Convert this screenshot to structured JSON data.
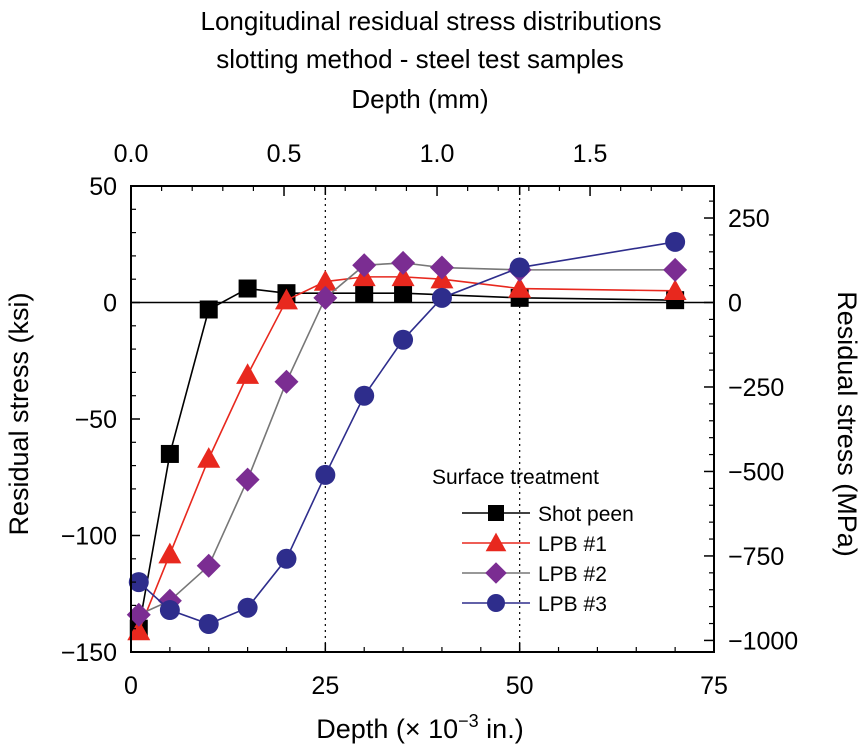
{
  "chart_data": {
    "type": "line",
    "title": "Longitudinal residual stress distributions",
    "subtitle": "slotting method - steel test samples",
    "xlabel": "Depth (× 10",
    "xlabel_sup": "−3",
    "xlabel_tail": " in.)",
    "ylabel": "Residual stress (ksi)",
    "top_xlabel": "Depth (mm)",
    "right_ylabel": "Residual stress (MPa)",
    "xlim": [
      0,
      75
    ],
    "ylim": [
      -150,
      50
    ],
    "x_ticks": [
      "0",
      "25",
      "50",
      "75"
    ],
    "y_ticks": [
      "50",
      "0",
      "−50",
      "−100",
      "−150"
    ],
    "top_ticks": [
      "0.0",
      "0.5",
      "1.0",
      "1.5"
    ],
    "right_ticks": [
      "250",
      "0",
      "−250",
      "−500",
      "−750",
      "−1000"
    ],
    "legend_title": "Surface treatment",
    "series": [
      {
        "name": "Shot peen",
        "marker": "square",
        "color": "#000000",
        "markerColor": "#000000",
        "dash": "0",
        "x": [
          1,
          5,
          10,
          15,
          20,
          30,
          35,
          50,
          70
        ],
        "y": [
          -140,
          -65,
          -3,
          6,
          4,
          4,
          4,
          2,
          1
        ]
      },
      {
        "name": "LPB #1",
        "marker": "triangle",
        "color": "#e8281e",
        "markerColor": "#e8281e",
        "dash": "0",
        "x": [
          1,
          5,
          10,
          15,
          20,
          25,
          30,
          35,
          40,
          50,
          70
        ],
        "y": [
          -141,
          -108,
          -67,
          -31,
          1,
          9,
          11,
          11,
          10,
          6,
          5
        ]
      },
      {
        "name": "LPB #2",
        "marker": "diamond",
        "color": "#777777",
        "markerColor": "#7b2d92",
        "dash": "0",
        "x": [
          1,
          5,
          10,
          15,
          20,
          25,
          30,
          35,
          40,
          50,
          70
        ],
        "y": [
          -134,
          -128,
          -113,
          -76,
          -34,
          2,
          16,
          17,
          15,
          14,
          14
        ]
      },
      {
        "name": "LPB #3",
        "marker": "circle",
        "color": "#2e2d8c",
        "markerColor": "#2e2d8c",
        "dash": "0",
        "x": [
          1,
          5,
          10,
          15,
          20,
          25,
          30,
          35,
          40,
          50,
          70
        ],
        "y": [
          -120,
          -132,
          -138,
          -131,
          -110,
          -74,
          -40,
          -16,
          2,
          15,
          26
        ]
      }
    ],
    "reference_lines_x": [
      25,
      50
    ]
  }
}
